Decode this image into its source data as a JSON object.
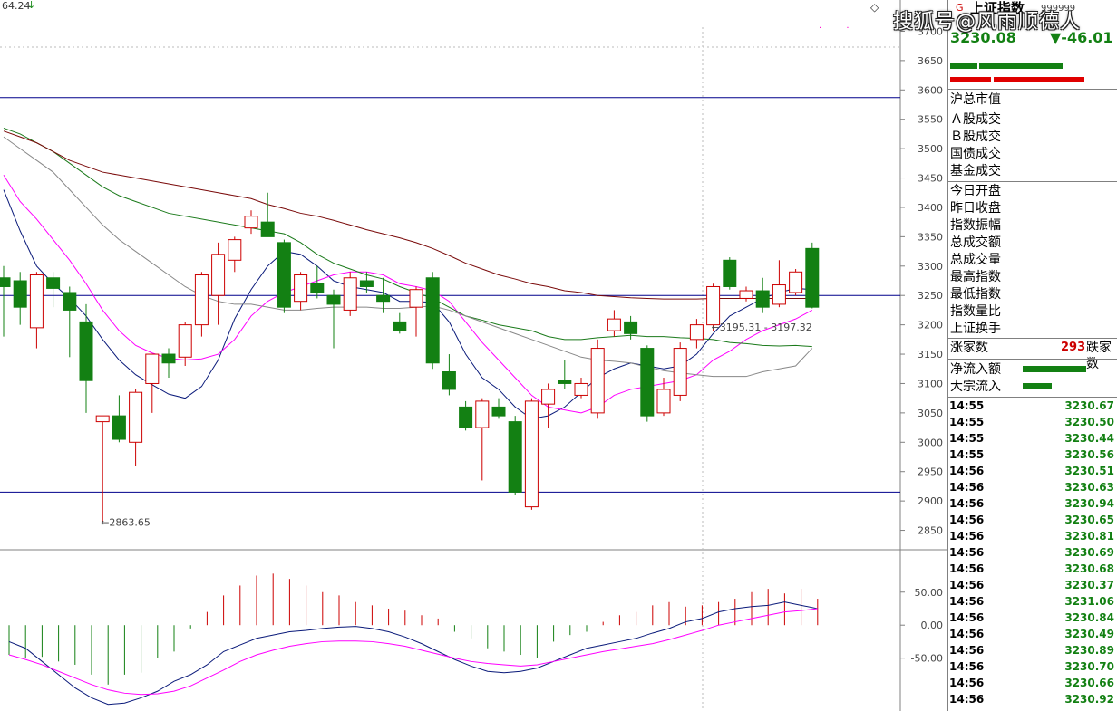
{
  "top_left_value": "64.24",
  "watermark": "搜狐号@风雨顺德人",
  "index": {
    "name": "上证指数",
    "code": "999999",
    "price": "3230.08",
    "change": "▼-46.01"
  },
  "labels": {
    "market_cap": "沪总市值",
    "a_share": "Ａ股成交",
    "b_share": "Ｂ股成交",
    "bond": "国债成交",
    "fund": "基金成交",
    "open": "今日开盘",
    "prev_close": "昨日收盘",
    "amplitude": "指数振幅",
    "total_amount": "总成交额",
    "total_volume": "总成交量",
    "high": "最高指数",
    "low": "最低指数",
    "ratio": "指数量比",
    "turnover": "上证换手",
    "advancers": "涨家数",
    "advancers_value": "293",
    "decliners": "跌家数",
    "net_inflow": "净流入额",
    "block_inflow": "大宗流入"
  },
  "ticks": [
    {
      "time": "14:55",
      "price": "3230.67"
    },
    {
      "time": "14:55",
      "price": "3230.50"
    },
    {
      "time": "14:55",
      "price": "3230.44"
    },
    {
      "time": "14:55",
      "price": "3230.56"
    },
    {
      "time": "14:56",
      "price": "3230.51"
    },
    {
      "time": "14:56",
      "price": "3230.63"
    },
    {
      "time": "14:56",
      "price": "3230.94"
    },
    {
      "time": "14:56",
      "price": "3230.65"
    },
    {
      "time": "14:56",
      "price": "3230.81"
    },
    {
      "time": "14:56",
      "price": "3230.69"
    },
    {
      "time": "14:56",
      "price": "3230.68"
    },
    {
      "time": "14:56",
      "price": "3230.37"
    },
    {
      "time": "14:56",
      "price": "3231.06"
    },
    {
      "time": "14:56",
      "price": "3230.84"
    },
    {
      "time": "14:56",
      "price": "3230.49"
    },
    {
      "time": "14:56",
      "price": "3230.89"
    },
    {
      "time": "14:56",
      "price": "3230.70"
    },
    {
      "time": "14:56",
      "price": "3230.66"
    },
    {
      "time": "14:56",
      "price": "3230.92"
    }
  ],
  "colors": {
    "up": "#cc0000",
    "down": "#138013",
    "ma_fast": "#0a1a7a",
    "ma_mid": "#ff00ff",
    "ma_long": "#1b7a1b",
    "ma_gray": "#888888",
    "ma_red": "#7a0a0a",
    "hline": "#00008b"
  },
  "chart_data": [
    {
      "type": "candlestick",
      "ylim": [
        2820,
        3730
      ],
      "yticks": [
        "3700",
        "3650",
        "3600",
        "3550",
        "3500",
        "3450",
        "3400",
        "3350",
        "3300",
        "3250",
        "3200",
        "3150",
        "3100",
        "3050",
        "3000",
        "2950",
        "2900",
        "2850"
      ],
      "horizontal_lines": [
        3587,
        3250,
        2915
      ],
      "annotations": [
        {
          "text": "←2863.65",
          "x_index": 6,
          "y": 2863.65
        },
        {
          "text": "←3195.31 - 3197.32",
          "x_index": 43,
          "y": 3196
        }
      ],
      "candles": [
        {
          "o": 3280,
          "h": 3300,
          "l": 3180,
          "c": 3265
        },
        {
          "o": 3275,
          "h": 3290,
          "l": 3200,
          "c": 3230
        },
        {
          "o": 3195,
          "h": 3290,
          "l": 3160,
          "c": 3285
        },
        {
          "o": 3280,
          "h": 3290,
          "l": 3230,
          "c": 3262
        },
        {
          "o": 3255,
          "h": 3265,
          "l": 3145,
          "c": 3225
        },
        {
          "o": 3205,
          "h": 3235,
          "l": 3050,
          "c": 3105
        },
        {
          "o": 3035,
          "h": 3045,
          "l": 2864,
          "c": 3045
        },
        {
          "o": 3045,
          "h": 3080,
          "l": 3000,
          "c": 3005
        },
        {
          "o": 3000,
          "h": 3090,
          "l": 2960,
          "c": 3085
        },
        {
          "o": 3100,
          "h": 3150,
          "l": 3050,
          "c": 3150
        },
        {
          "o": 3150,
          "h": 3160,
          "l": 3110,
          "c": 3135
        },
        {
          "o": 3145,
          "h": 3205,
          "l": 3130,
          "c": 3200
        },
        {
          "o": 3200,
          "h": 3290,
          "l": 3180,
          "c": 3285
        },
        {
          "o": 3250,
          "h": 3340,
          "l": 3200,
          "c": 3320
        },
        {
          "o": 3310,
          "h": 3350,
          "l": 3290,
          "c": 3345
        },
        {
          "o": 3365,
          "h": 3395,
          "l": 3355,
          "c": 3385
        },
        {
          "o": 3375,
          "h": 3425,
          "l": 3350,
          "c": 3350
        },
        {
          "o": 3340,
          "h": 3345,
          "l": 3220,
          "c": 3230
        },
        {
          "o": 3240,
          "h": 3290,
          "l": 3225,
          "c": 3285
        },
        {
          "o": 3270,
          "h": 3300,
          "l": 3245,
          "c": 3255
        },
        {
          "o": 3250,
          "h": 3260,
          "l": 3160,
          "c": 3235
        },
        {
          "o": 3225,
          "h": 3290,
          "l": 3215,
          "c": 3280
        },
        {
          "o": 3275,
          "h": 3290,
          "l": 3255,
          "c": 3265
        },
        {
          "o": 3250,
          "h": 3280,
          "l": 3220,
          "c": 3240
        },
        {
          "o": 3205,
          "h": 3220,
          "l": 3185,
          "c": 3190
        },
        {
          "o": 3230,
          "h": 3265,
          "l": 3180,
          "c": 3260
        },
        {
          "o": 3280,
          "h": 3290,
          "l": 3125,
          "c": 3135
        },
        {
          "o": 3120,
          "h": 3150,
          "l": 3080,
          "c": 3090
        },
        {
          "o": 3060,
          "h": 3070,
          "l": 3020,
          "c": 3025
        },
        {
          "o": 3025,
          "h": 3075,
          "l": 2935,
          "c": 3070
        },
        {
          "o": 3060,
          "h": 3075,
          "l": 3040,
          "c": 3045
        },
        {
          "o": 3035,
          "h": 3045,
          "l": 2910,
          "c": 2915
        },
        {
          "o": 2890,
          "h": 3075,
          "l": 2885,
          "c": 3070
        },
        {
          "o": 3065,
          "h": 3100,
          "l": 3025,
          "c": 3090
        },
        {
          "o": 3105,
          "h": 3140,
          "l": 3090,
          "c": 3100
        },
        {
          "o": 3080,
          "h": 3110,
          "l": 3075,
          "c": 3100
        },
        {
          "o": 3050,
          "h": 3175,
          "l": 3040,
          "c": 3160
        },
        {
          "o": 3190,
          "h": 3225,
          "l": 3180,
          "c": 3210
        },
        {
          "o": 3205,
          "h": 3215,
          "l": 3175,
          "c": 3185
        },
        {
          "o": 3160,
          "h": 3165,
          "l": 3035,
          "c": 3045
        },
        {
          "o": 3050,
          "h": 3110,
          "l": 3045,
          "c": 3090
        },
        {
          "o": 3080,
          "h": 3170,
          "l": 3070,
          "c": 3160
        },
        {
          "o": 3175,
          "h": 3210,
          "l": 3160,
          "c": 3200
        },
        {
          "o": 3200,
          "h": 3270,
          "l": 3190,
          "c": 3265
        },
        {
          "o": 3310,
          "h": 3315,
          "l": 3260,
          "c": 3265
        },
        {
          "o": 3245,
          "h": 3265,
          "l": 3240,
          "c": 3258
        },
        {
          "o": 3258,
          "h": 3280,
          "l": 3220,
          "c": 3230
        },
        {
          "o": 3235,
          "h": 3310,
          "l": 3230,
          "c": 3268
        },
        {
          "o": 3255,
          "h": 3295,
          "l": 3250,
          "c": 3290
        },
        {
          "o": 3330,
          "h": 3340,
          "l": 3228,
          "c": 3230
        }
      ],
      "moving_averages": [
        {
          "color_key": "ma_fast",
          "values": [
            3430,
            3360,
            3300,
            3270,
            3245,
            3215,
            3175,
            3140,
            3115,
            3098,
            3082,
            3075,
            3095,
            3140,
            3210,
            3260,
            3300,
            3325,
            3320,
            3300,
            3275,
            3265,
            3260,
            3255,
            3240,
            3240,
            3238,
            3205,
            3150,
            3110,
            3090,
            3060,
            3040,
            3045,
            3060,
            3085,
            3110,
            3125,
            3135,
            3130,
            3125,
            3130,
            3150,
            3185,
            3215,
            3230,
            3245,
            3255,
            3262,
            3260
          ]
        },
        {
          "color_key": "ma_mid",
          "values": [
            3455,
            3410,
            3380,
            3345,
            3310,
            3270,
            3225,
            3190,
            3165,
            3152,
            3143,
            3140,
            3142,
            3150,
            3175,
            3215,
            3240,
            3255,
            3265,
            3275,
            3285,
            3290,
            3290,
            3285,
            3270,
            3265,
            3258,
            3240,
            3205,
            3170,
            3140,
            3110,
            3080,
            3060,
            3055,
            3050,
            3060,
            3080,
            3090,
            3095,
            3100,
            3105,
            3115,
            3140,
            3155,
            3175,
            3190,
            3200,
            3210,
            3225
          ]
        },
        {
          "color_key": "ma_long",
          "values": [
            3535,
            3525,
            3510,
            3495,
            3475,
            3455,
            3435,
            3420,
            3410,
            3400,
            3390,
            3385,
            3380,
            3375,
            3370,
            3365,
            3360,
            3355,
            3340,
            3320,
            3305,
            3295,
            3285,
            3278,
            3265,
            3255,
            3245,
            3230,
            3215,
            3208,
            3200,
            3195,
            3190,
            3180,
            3175,
            3175,
            3178,
            3180,
            3182,
            3180,
            3180,
            3178,
            3177,
            3175,
            3170,
            3168,
            3165,
            3164,
            3165,
            3163
          ]
        },
        {
          "color_key": "ma_gray",
          "values": [
            3520,
            3500,
            3480,
            3460,
            3430,
            3400,
            3370,
            3345,
            3325,
            3305,
            3285,
            3265,
            3250,
            3240,
            3235,
            3235,
            3230,
            3225,
            3225,
            3228,
            3230,
            3230,
            3230,
            3228,
            3228,
            3230,
            3232,
            3225,
            3215,
            3205,
            3195,
            3185,
            3175,
            3165,
            3155,
            3145,
            3140,
            3138,
            3135,
            3128,
            3122,
            3118,
            3115,
            3112,
            3112,
            3112,
            3120,
            3125,
            3130,
            3160
          ]
        },
        {
          "color_key": "ma_red",
          "values": [
            3530,
            3520,
            3510,
            3495,
            3480,
            3470,
            3460,
            3455,
            3450,
            3445,
            3440,
            3435,
            3430,
            3425,
            3420,
            3415,
            3405,
            3398,
            3390,
            3385,
            3378,
            3370,
            3362,
            3355,
            3348,
            3340,
            3330,
            3318,
            3305,
            3295,
            3285,
            3278,
            3270,
            3265,
            3258,
            3255,
            3250,
            3248,
            3246,
            3245,
            3244,
            3244,
            3244,
            3245,
            3245,
            3245,
            3245,
            3245,
            3245,
            3245
          ]
        }
      ]
    },
    {
      "type": "bar",
      "ylim": [
        -130,
        110
      ],
      "yticks": [
        "50.00",
        "0.00",
        "-50.00"
      ],
      "bars": [
        -45,
        -50,
        -48,
        -55,
        -60,
        -75,
        -90,
        -75,
        -72,
        -50,
        -40,
        -5,
        20,
        45,
        60,
        75,
        78,
        70,
        60,
        50,
        45,
        35,
        30,
        25,
        22,
        15,
        10,
        -10,
        -20,
        -35,
        -40,
        -45,
        -50,
        -25,
        -15,
        -10,
        5,
        15,
        20,
        30,
        35,
        28,
        30,
        35,
        40,
        50,
        55,
        48,
        55,
        40
      ],
      "line_fast": [
        -25,
        -35,
        -55,
        -75,
        -95,
        -110,
        -120,
        -118,
        -110,
        -100,
        -85,
        -75,
        -60,
        -40,
        -30,
        -20,
        -15,
        -10,
        -8,
        -5,
        -3,
        -2,
        -5,
        -10,
        -18,
        -28,
        -40,
        -52,
        -62,
        -70,
        -72,
        -70,
        -65,
        -55,
        -45,
        -35,
        -30,
        -25,
        -20,
        -12,
        -5,
        5,
        10,
        20,
        25,
        28,
        30,
        35,
        30,
        25
      ],
      "line_slow": [
        -45,
        -52,
        -60,
        -70,
        -80,
        -90,
        -98,
        -103,
        -105,
        -104,
        -100,
        -92,
        -80,
        -68,
        -55,
        -45,
        -38,
        -32,
        -28,
        -25,
        -24,
        -24,
        -25,
        -28,
        -32,
        -38,
        -44,
        -50,
        -55,
        -58,
        -60,
        -62,
        -60,
        -55,
        -50,
        -45,
        -40,
        -36,
        -32,
        -28,
        -22,
        -15,
        -8,
        0,
        5,
        10,
        15,
        20,
        22,
        25
      ]
    }
  ]
}
